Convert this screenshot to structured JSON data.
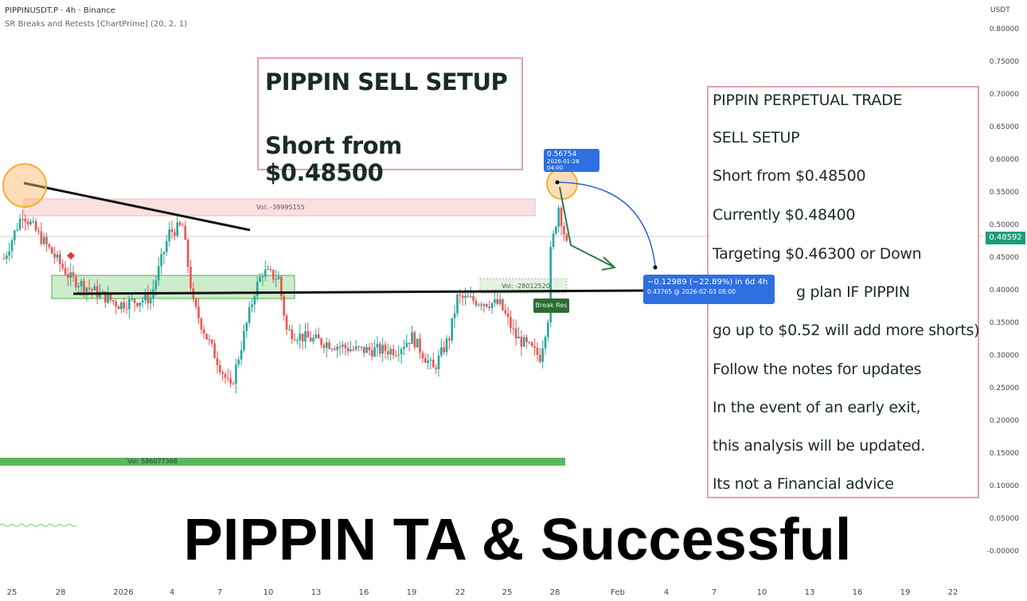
{
  "header": {
    "symbol_line": "PIPPINUSDT.P · 4h · Binance",
    "indicator_line": "SR Breaks and Retests [ChartPrime] (20, 2, 1)"
  },
  "title_box": {
    "line1": "PIPPIN SELL SETUP",
    "line2": "Short from $0.48500"
  },
  "notes_box": {
    "lines": [
      "PIPPIN PERPETUAL TRADE",
      "SELL SETUP",
      "Short from $0.48500",
      "Currently $0.48400",
      "Targeting $0.46300 or Down",
      "g plan IF PIPPIN",
      "go up to $0.52 will add more shorts)",
      "Follow the notes for updates",
      "In the event of an early exit,",
      "this analysis will be updated.",
      "Its not a Financial advice"
    ]
  },
  "caption": "PIPPIN TA & Successful",
  "zones": {
    "resistance_label": "Vol: -39995155",
    "retest_label": "Vol: -28012520",
    "break_label": "Break Res",
    "volume_bar_label": "Vol: 586077388"
  },
  "tooltips": {
    "high_price": "0.56754",
    "high_time": "2026-01-28 04:00",
    "measure_change": "−0.12989 (−22.89%) in 6d 4h",
    "measure_target": "0.43765 @ 2026-02-03  08:00"
  },
  "price_tag": "0.48592",
  "colors": {
    "up": "#26a69a",
    "down": "#ef5350",
    "accent": "#2f6fe0",
    "price_tag": "#1e9c7a",
    "box_border": "#e8a0a8"
  },
  "chart_data": {
    "type": "candlestick",
    "timeframe": "4h",
    "y_unit": "USDT",
    "ylim": [
      0,
      0.8
    ],
    "y_ticks": [
      "0.80000",
      "0.75000",
      "0.70000",
      "0.65000",
      "0.60000",
      "0.55000",
      "0.50000",
      "0.45000",
      "0.40000",
      "0.35000",
      "0.30000",
      "0.25000",
      "0.20000",
      "0.15000",
      "0.10000",
      "0.05000",
      "-0.00000"
    ],
    "x_ticks": [
      "25",
      "28",
      "2026",
      "4",
      "7",
      "10",
      "13",
      "16",
      "19",
      "22",
      "25",
      "28",
      "Feb",
      "4",
      "7",
      "10",
      "13",
      "16",
      "19",
      "22"
    ],
    "current_price": 0.48592,
    "price_path": [
      [
        "2025-12-24 12:00",
        0.45
      ],
      [
        "2025-12-25 16:00",
        0.52
      ],
      [
        "2025-12-27 04:00",
        0.47
      ],
      [
        "2025-12-28 16:00",
        0.42
      ],
      [
        "2025-12-31 16:00",
        0.38
      ],
      [
        "2026-01-02 16:00",
        0.39
      ],
      [
        "2026-01-03 20:00",
        0.49
      ],
      [
        "2026-01-04 16:00",
        0.5
      ],
      [
        "2026-01-05 08:00",
        0.38
      ],
      [
        "2026-01-06 04:00",
        0.33
      ],
      [
        "2026-01-07 16:00",
        0.25
      ],
      [
        "2026-01-08 04:00",
        0.3
      ],
      [
        "2026-01-09 04:00",
        0.4
      ],
      [
        "2026-01-09 16:00",
        0.43
      ],
      [
        "2026-01-10 16:00",
        0.42
      ],
      [
        "2026-01-11 04:00",
        0.34
      ],
      [
        "2026-01-12 04:00",
        0.33
      ],
      [
        "2026-01-15 12:00",
        0.31
      ],
      [
        "2026-01-18 00:00",
        0.31
      ],
      [
        "2026-01-19 00:00",
        0.33
      ],
      [
        "2026-01-20 08:00",
        0.28
      ],
      [
        "2026-01-21 08:00",
        0.33
      ],
      [
        "2026-01-21 20:00",
        0.39
      ],
      [
        "2026-01-24 12:00",
        0.38
      ],
      [
        "2026-01-25 12:00",
        0.33
      ],
      [
        "2026-01-27 00:00",
        0.3
      ],
      [
        "2026-01-27 12:00",
        0.36
      ],
      [
        "2026-01-27 16:00",
        0.46
      ],
      [
        "2026-01-28 04:00",
        0.53
      ],
      [
        "2026-01-28 16:00",
        0.47
      ],
      [
        "2026-01-28 20:00",
        0.486
      ]
    ]
  }
}
